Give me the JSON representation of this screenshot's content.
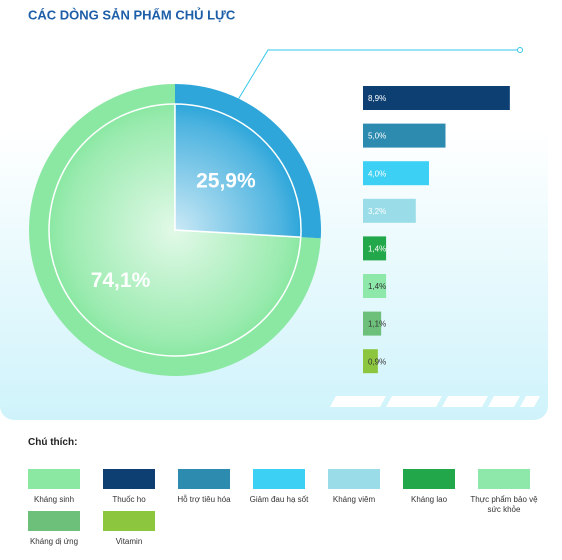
{
  "legend_title": "Chú thích:",
  "chart_data": [
    {
      "type": "pie",
      "title": "CÁC DÒNG SẢN PHẨM CHỦ LỰC",
      "categories": [
        "Kháng sinh",
        null
      ],
      "values": [
        74.1,
        25.9
      ],
      "value_labels": [
        "74,1%",
        "25,9%"
      ],
      "colors": [
        "#8be8a3",
        "#2ea6d9"
      ]
    },
    {
      "type": "bar",
      "orientation": "horizontal",
      "categories": [
        "Thuốc ho",
        "Hỗ trợ tiêu hóa",
        "Giảm đau hạ sốt",
        "Kháng viêm",
        "Kháng lao",
        "Thực phẩm bảo vệ sức khỏe",
        "Kháng dị ứng",
        "Vitamin"
      ],
      "values": [
        8.9,
        5.0,
        4.0,
        3.2,
        1.4,
        1.4,
        1.1,
        0.9
      ],
      "value_labels": [
        "8,9%",
        "5,0%",
        "4,0%",
        "3,2%",
        "1,4%",
        "1,4%",
        "1,1%",
        "0,9%"
      ],
      "colors": [
        "#0d3f73",
        "#2e8bb0",
        "#3dd0f5",
        "#9adde8",
        "#22a84a",
        "#8de8a9",
        "#6cc07a",
        "#8cc63f"
      ]
    }
  ]
}
